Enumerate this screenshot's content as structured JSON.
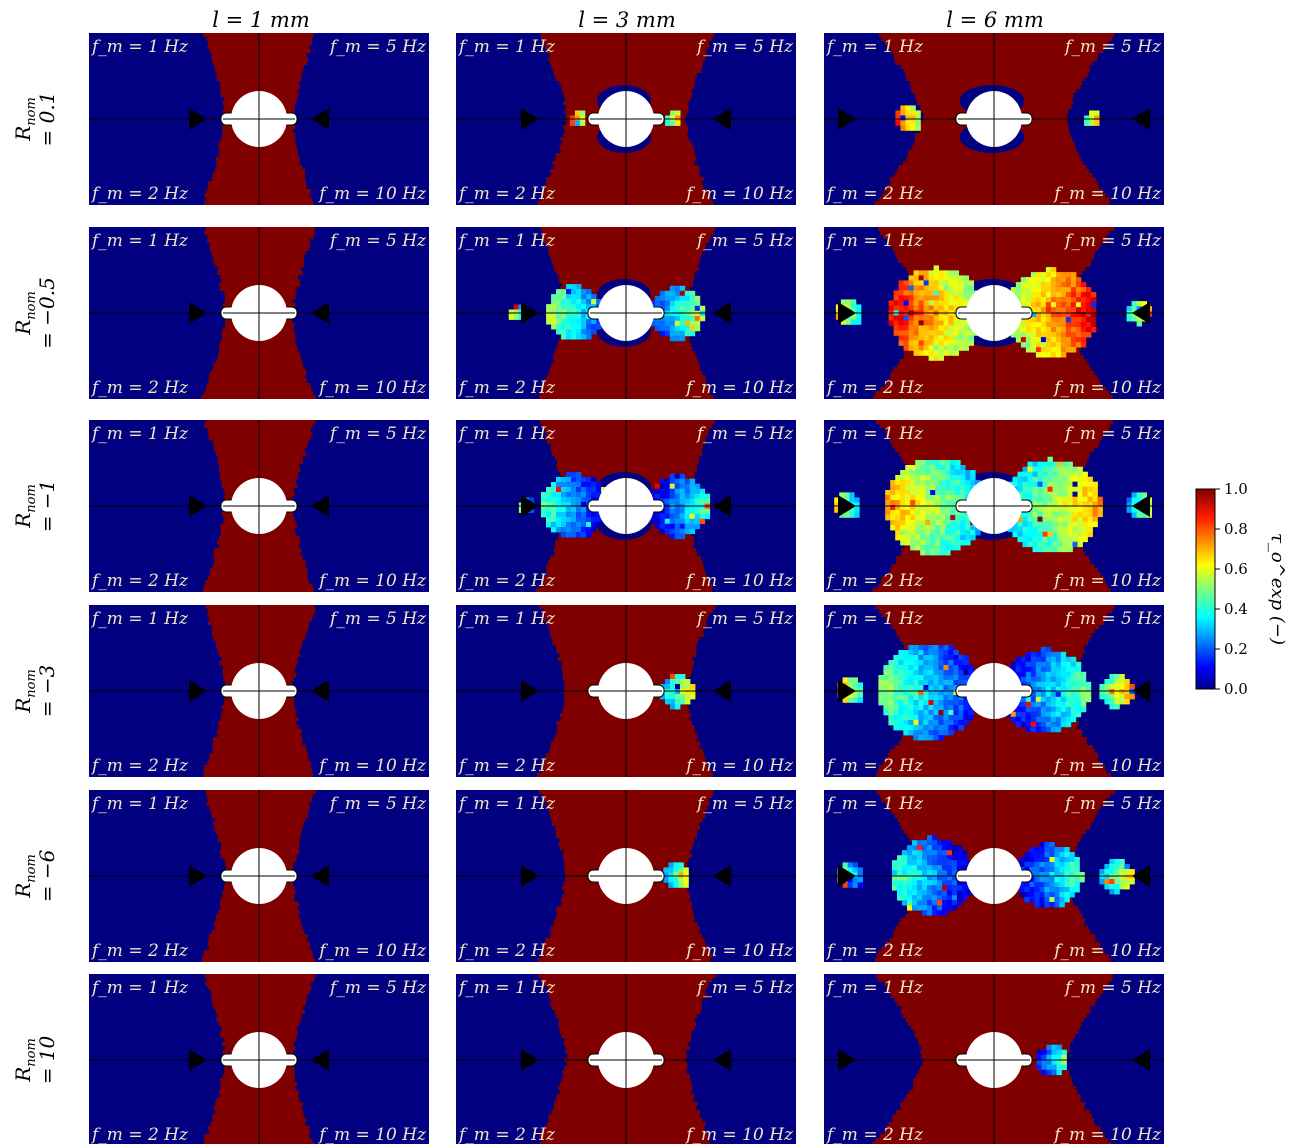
{
  "chart_data": {
    "type": "heatmap",
    "layout": "grid of 6 rows x 3 columns of maps",
    "columns": [
      "l = 1 mm",
      "l = 3 mm",
      "l = 6 mm"
    ],
    "rows": [
      {
        "label_top": "R",
        "label_sub": "nom",
        "label_bottom": "= 0.1"
      },
      {
        "label_top": "R",
        "label_sub": "nom",
        "label_bottom": "= −0.5"
      },
      {
        "label_top": "R",
        "label_sub": "nom",
        "label_bottom": "= −1"
      },
      {
        "label_top": "R",
        "label_sub": "nom",
        "label_bottom": "= −3"
      },
      {
        "label_top": "R",
        "label_sub": "nom",
        "label_bottom": "= −6"
      },
      {
        "label_top": "R",
        "label_sub": "nom",
        "label_bottom": "= 10"
      }
    ],
    "quadrant_labels": {
      "top_left": "f_m = 1 Hz",
      "top_right": "f_m = 5 Hz",
      "bottom_left": "f_m = 2 Hz",
      "bottom_right": "f_m = 10 Hz"
    },
    "background_value_low": 0.0,
    "background_value_high": 1.0,
    "colorbar": {
      "label": "τ_o^exp (−)",
      "range": [
        0.0,
        1.0
      ],
      "ticks": [
        "0.0",
        "0.2",
        "0.4",
        "0.6",
        "0.8",
        "1.0"
      ],
      "colormap": "jet",
      "placement": "right"
    },
    "lobes": [
      [
        [],
        [],
        [],
        [],
        [],
        []
      ],
      [
        [
          {
            "side": "L",
            "dist": 0.28,
            "r": 0.05,
            "v": 0.7
          },
          {
            "side": "R",
            "dist": 0.28,
            "r": 0.05,
            "v": 0.6
          }
        ],
        [
          {
            "side": "L",
            "dist": 0.3,
            "r": 0.17,
            "v": 0.42
          },
          {
            "side": "R",
            "dist": 0.3,
            "r": 0.16,
            "v": 0.4
          },
          {
            "side": "L",
            "dist": 0.64,
            "r": 0.05,
            "v": 0.5
          }
        ],
        [
          {
            "side": "L",
            "dist": 0.3,
            "r": 0.2,
            "v": 0.3
          },
          {
            "side": "R",
            "dist": 0.3,
            "r": 0.19,
            "v": 0.28
          },
          {
            "side": "L",
            "dist": 0.58,
            "r": 0.05,
            "v": 0.4
          }
        ],
        [
          {
            "side": "R",
            "dist": 0.3,
            "r": 0.1,
            "v": 0.5
          }
        ],
        [
          {
            "side": "R",
            "dist": 0.3,
            "r": 0.08,
            "v": 0.5
          }
        ],
        []
      ],
      [
        [
          {
            "side": "L",
            "dist": 0.5,
            "r": 0.08,
            "v": 0.72
          },
          {
            "side": "R",
            "dist": 0.58,
            "r": 0.05,
            "v": 0.6
          }
        ],
        [
          {
            "side": "L",
            "dist": 0.34,
            "r": 0.28,
            "v": 0.72
          },
          {
            "side": "R",
            "dist": 0.34,
            "r": 0.27,
            "v": 0.75
          },
          {
            "side": "L",
            "dist": 0.85,
            "r": 0.08,
            "v": 0.55
          },
          {
            "side": "R",
            "dist": 0.85,
            "r": 0.07,
            "v": 0.6
          }
        ],
        [
          {
            "side": "L",
            "dist": 0.34,
            "r": 0.3,
            "v": 0.55
          },
          {
            "side": "R",
            "dist": 0.34,
            "r": 0.29,
            "v": 0.55
          },
          {
            "side": "L",
            "dist": 0.86,
            "r": 0.08,
            "v": 0.5
          },
          {
            "side": "R",
            "dist": 0.86,
            "r": 0.08,
            "v": 0.5
          }
        ],
        [
          {
            "side": "L",
            "dist": 0.38,
            "r": 0.3,
            "v": 0.35
          },
          {
            "side": "R",
            "dist": 0.3,
            "r": 0.26,
            "v": 0.32
          },
          {
            "side": "L",
            "dist": 0.84,
            "r": 0.08,
            "v": 0.6
          },
          {
            "side": "R",
            "dist": 0.72,
            "r": 0.1,
            "v": 0.6
          }
        ],
        [
          {
            "side": "L",
            "dist": 0.36,
            "r": 0.24,
            "v": 0.3
          },
          {
            "side": "R",
            "dist": 0.32,
            "r": 0.2,
            "v": 0.3
          },
          {
            "side": "L",
            "dist": 0.84,
            "r": 0.08,
            "v": 0.4
          },
          {
            "side": "R",
            "dist": 0.72,
            "r": 0.1,
            "v": 0.5
          }
        ],
        [
          {
            "side": "R",
            "dist": 0.34,
            "r": 0.09,
            "v": 0.35
          }
        ]
      ]
    ]
  }
}
